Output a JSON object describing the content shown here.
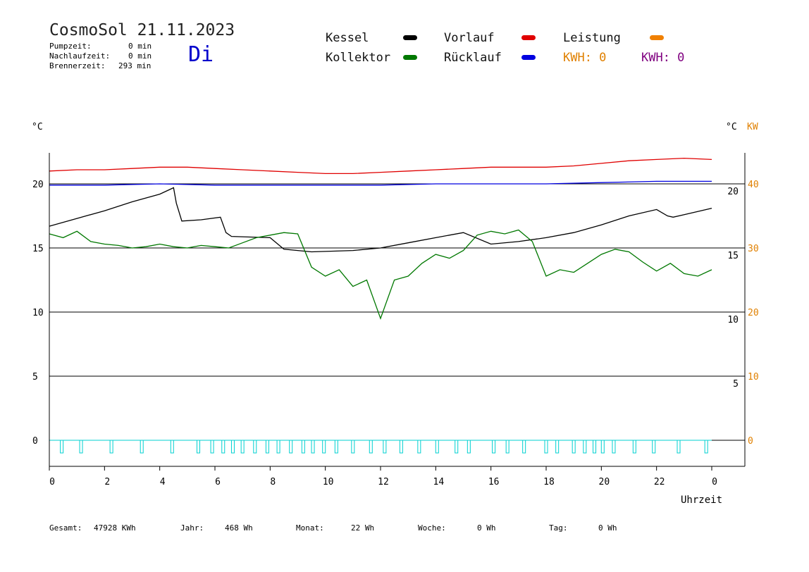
{
  "header": {
    "title": "CosmoSol 21.11.2023",
    "day": "Di",
    "stats": [
      {
        "label": "Pumpzeit:",
        "value": "0 min"
      },
      {
        "label": "Nachlaufzeit:",
        "value": "0 min"
      },
      {
        "label": "Brennerzeit:",
        "value": "293 min"
      }
    ]
  },
  "legend": {
    "kessel": {
      "label": "Kessel",
      "color": "#000000"
    },
    "kollektor": {
      "label": "Kollektor",
      "color": "#007800"
    },
    "vorlauf": {
      "label": "Vorlauf",
      "color": "#e00000"
    },
    "ruecklauf": {
      "label": "Rücklauf",
      "color": "#0000e0"
    },
    "leistung": {
      "label": "Leistung",
      "color": "#f08000"
    },
    "kwh1": {
      "label": "KWH: 0",
      "color": "#e08000"
    },
    "kwh2": {
      "label": "KWH: 0",
      "color": "#800080"
    }
  },
  "footer": [
    {
      "label": "Gesamt:",
      "value": "47928 KWh"
    },
    {
      "label": "Jahr:",
      "value": "468 Wh"
    },
    {
      "label": "Monat:",
      "value": "22 Wh"
    },
    {
      "label": "Woche:",
      "value": "0 Wh"
    },
    {
      "label": "Tag:",
      "value": "0 Wh"
    }
  ],
  "chart_data": {
    "type": "line",
    "xlabel": "Uhrzeit",
    "ylabel_left": "°C",
    "ylabel_right": "°C",
    "ylabel_right2": "KW",
    "xlim": [
      0,
      24
    ],
    "ylim": [
      -2,
      22
    ],
    "x_ticks": [
      "0",
      "2",
      "4",
      "6",
      "8",
      "10",
      "12",
      "14",
      "16",
      "18",
      "20",
      "22",
      "0"
    ],
    "y_left_ticks": [
      0,
      5,
      10,
      15,
      20
    ],
    "y_right_ticks": [
      5,
      10,
      15,
      20
    ],
    "y_right2_ticks": [
      0,
      10,
      20,
      30,
      40
    ],
    "gridlines": [
      0,
      5,
      10,
      15,
      20
    ],
    "series": [
      {
        "name": "Vorlauf",
        "color": "#e00000",
        "x": [
          0,
          1,
          2,
          3,
          4,
          5,
          6,
          7,
          8,
          9,
          10,
          11,
          12,
          13,
          14,
          15,
          16,
          17,
          18,
          19,
          20,
          21,
          22,
          23,
          24
        ],
        "y": [
          21.0,
          21.1,
          21.1,
          21.2,
          21.3,
          21.3,
          21.2,
          21.1,
          21.0,
          20.9,
          20.8,
          20.8,
          20.9,
          21.0,
          21.1,
          21.2,
          21.3,
          21.3,
          21.3,
          21.4,
          21.6,
          21.8,
          21.9,
          22.0,
          21.9
        ]
      },
      {
        "name": "Rücklauf",
        "color": "#0000e0",
        "x": [
          0,
          2,
          4,
          6,
          8,
          10,
          12,
          14,
          16,
          18,
          20,
          22,
          24
        ],
        "y": [
          19.9,
          19.9,
          20.0,
          19.9,
          19.9,
          19.9,
          19.9,
          20.0,
          20.0,
          20.0,
          20.1,
          20.2,
          20.2
        ]
      },
      {
        "name": "Kessel",
        "color": "#000000",
        "x": [
          0,
          1,
          2,
          3,
          4,
          4.5,
          4.6,
          4.8,
          5.5,
          6.2,
          6.4,
          6.6,
          8.0,
          8.5,
          9.5,
          11.0,
          12.0,
          13.0,
          14.0,
          15.0,
          16.0,
          17.0,
          18.0,
          19.0,
          20.0,
          21.0,
          22.0,
          22.4,
          22.6,
          23.0,
          24.0
        ],
        "y": [
          16.7,
          17.3,
          17.9,
          18.6,
          19.2,
          19.7,
          18.5,
          17.1,
          17.2,
          17.4,
          16.2,
          15.9,
          15.8,
          14.9,
          14.7,
          14.8,
          15.0,
          15.4,
          15.8,
          16.2,
          15.3,
          15.5,
          15.8,
          16.2,
          16.8,
          17.5,
          18.0,
          17.5,
          17.4,
          17.6,
          18.1
        ]
      },
      {
        "name": "Kollektor",
        "color": "#007800",
        "x": [
          0,
          0.5,
          1,
          1.5,
          2,
          2.5,
          3,
          3.5,
          4,
          4.5,
          5,
          5.5,
          6,
          6.5,
          7,
          7.5,
          8,
          8.5,
          9,
          9.5,
          10,
          10.5,
          11,
          11.5,
          12,
          12.5,
          13,
          13.5,
          14,
          14.5,
          15,
          15.5,
          16,
          16.5,
          17,
          17.5,
          18,
          18.5,
          19,
          19.5,
          20,
          20.5,
          21,
          21.5,
          22,
          22.5,
          23,
          23.5,
          24
        ],
        "y": [
          16.1,
          15.8,
          16.3,
          15.5,
          15.3,
          15.2,
          15.0,
          15.1,
          15.3,
          15.1,
          15.0,
          15.2,
          15.1,
          15.0,
          15.4,
          15.8,
          16.0,
          16.2,
          16.1,
          13.5,
          12.8,
          13.3,
          12.0,
          12.5,
          9.5,
          12.5,
          12.8,
          13.8,
          14.5,
          14.2,
          14.8,
          16.0,
          16.3,
          16.1,
          16.4,
          15.5,
          12.8,
          13.3,
          13.1,
          13.8,
          14.5,
          14.9,
          14.7,
          13.9,
          13.2,
          13.8,
          13.0,
          12.8,
          13.3
        ]
      }
    ],
    "pump_markers_x": [
      0.45,
      1.15,
      2.25,
      3.35,
      4.45,
      5.4,
      5.9,
      6.3,
      6.65,
      7.0,
      7.45,
      7.9,
      8.3,
      8.75,
      9.2,
      9.55,
      9.95,
      10.4,
      11.0,
      11.65,
      12.15,
      12.75,
      13.4,
      14.05,
      14.75,
      15.2,
      16.1,
      16.6,
      17.2,
      18.0,
      18.4,
      19.0,
      19.4,
      19.75,
      20.05,
      20.45,
      21.2,
      21.9,
      22.8,
      23.8
    ]
  }
}
